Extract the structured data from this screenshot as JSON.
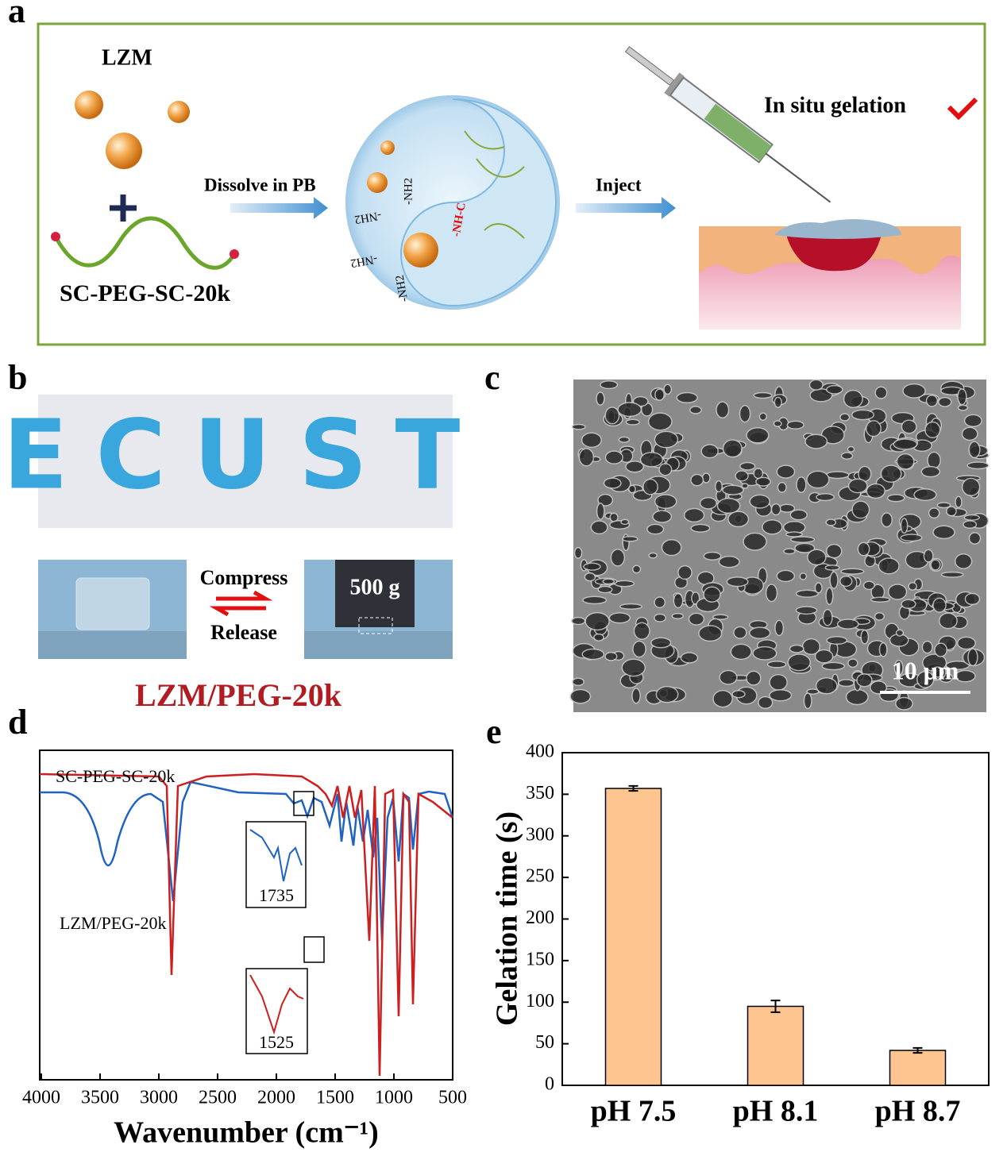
{
  "panel_labels": [
    "a",
    "b",
    "c",
    "d",
    "e"
  ],
  "diagram": {
    "lzm": "LZM",
    "polymer": "SC-PEG-SC-20k",
    "step1": "Dissolve in PB",
    "step2": "Inject",
    "result": "In situ gelation",
    "groups": [
      "-NH2",
      "-NH2",
      "-NH2",
      "-NH2",
      "-NH-C"
    ]
  },
  "photos": {
    "letters": "ECUST",
    "compress": "Compress",
    "release": "Release",
    "weight": "500 g",
    "sample": "LZM/PEG-20k"
  },
  "sem": {
    "scale_bar": "10 μm"
  },
  "chart_data": [
    {
      "type": "line",
      "xlabel": "Wavenumber (cm⁻¹)",
      "xlim": [
        4000,
        500
      ],
      "xticks": [
        4000,
        3500,
        3000,
        2500,
        2000,
        1500,
        1000,
        500
      ],
      "series": [
        {
          "name": "SC-PEG-SC-20k",
          "color": "#1f62c4"
        },
        {
          "name": "LZM/PEG-20k",
          "color": "#cc1f1f"
        }
      ],
      "annotations": [
        1735,
        1525
      ]
    },
    {
      "type": "bar",
      "ylabel": "Gelation time (s)",
      "categories": [
        "pH 7.5",
        "pH 8.1",
        "pH 8.7"
      ],
      "values": [
        357,
        95,
        42
      ],
      "errors": [
        3,
        7,
        3
      ],
      "color": "#ffc590",
      "ylim": [
        0,
        400
      ],
      "yticks": [
        0,
        50,
        100,
        150,
        200,
        250,
        300,
        350,
        400
      ]
    }
  ]
}
